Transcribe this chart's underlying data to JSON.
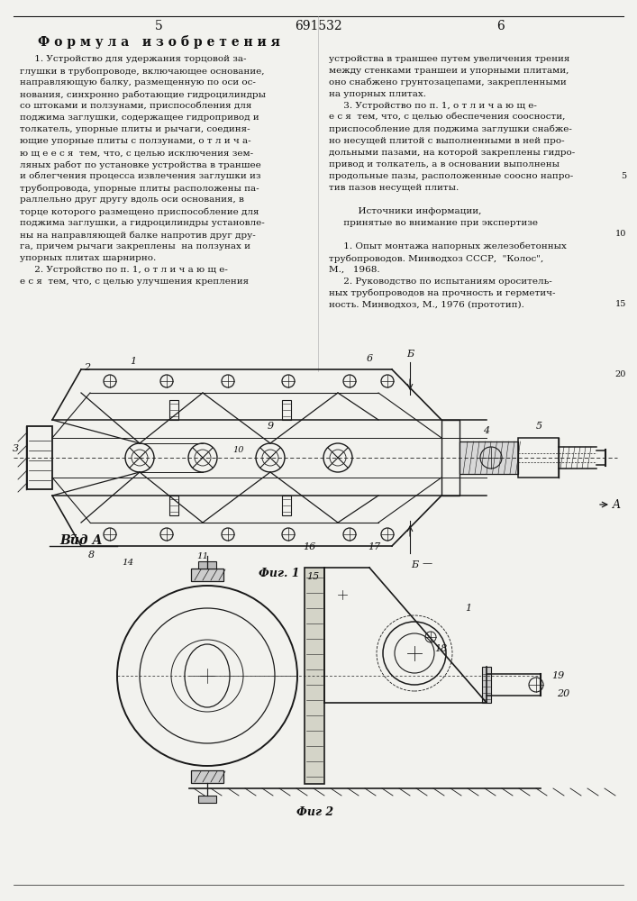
{
  "page_number_left": "5",
  "patent_number": "691532",
  "page_number_right": "6",
  "section_title": "Ф о р м у л а   и з о б р е т е н и я",
  "col1_lines": [
    "     1. Устройство для удержания торцовой за-",
    "глушки в трубопроводе, включающее основание,",
    "направляющую балку, размещенную по оси ос-",
    "нования, синхронно работающие гидроцилиндры",
    "со штоками и ползунами, приспособления для",
    "поджима заглушки, содержащее гидропривод и",
    "толкатель, упорные плиты и рычаги, соединя-",
    "ющие упорные плиты с ползунами, о т л и ч а-",
    "ю щ е е с я  тем, что, с целью исключения зем-",
    "ляных работ по установке устройства в траншее",
    "и облегчения процесса извлечения заглушки из",
    "трубопровода, упорные плиты расположены па-",
    "раллельно друг другу вдоль оси основания, в",
    "торце которого размещено приспособление для",
    "поджима заглушки, а гидроцилиндры установле-",
    "ны на направляющей балке напротив друг дру-",
    "га, причем рычаги закреплены  на ползунах и",
    "упорных плитах шарнирно.",
    "     2. Устройство по п. 1, о т л и ч а ю щ е-",
    "е с я  тем, что, с целью улучшения крепления"
  ],
  "col2_lines": [
    "устройства в траншее путем увеличения трения",
    "между стенками траншеи и упорными плитами,",
    "оно снабжено грунтозацепами, закрепленными",
    "на упорных плитах.",
    "     3. Устройство по п. 1, о т л и ч а ю щ е-",
    "е с я  тем, что, с целью обеспечения соосности,",
    "приспособление для поджима заглушки снабже-",
    "но несущей плитой с выполненными в ней про-",
    "дольными пазами, на которой закреплены гидро-",
    "привод и толкатель, а в основании выполнены",
    "продольные пазы, расположенные соосно напро-",
    "тив пазов несущей плиты.",
    "",
    "          Источники информации,",
    "     принятые во внимание при экспертизе",
    "",
    "     1. Опыт монтажа напорных железобетонных",
    "трубопроводов. Минводхоз СССР,  \"Колос\",",
    "М.,   1968.",
    "     2. Руководство по испытаниям ороситель-",
    "ных трубопроводов на прочность и герметич-",
    "ность. Минводхоз, М., 1976 (прототип)."
  ],
  "fig1_caption": "Фиг. 1",
  "fig2_caption": "Фиг 2",
  "view_label": "Вид А",
  "background_color": "#f2f2ee",
  "text_color": "#111111",
  "line_color": "#1a1a1a"
}
